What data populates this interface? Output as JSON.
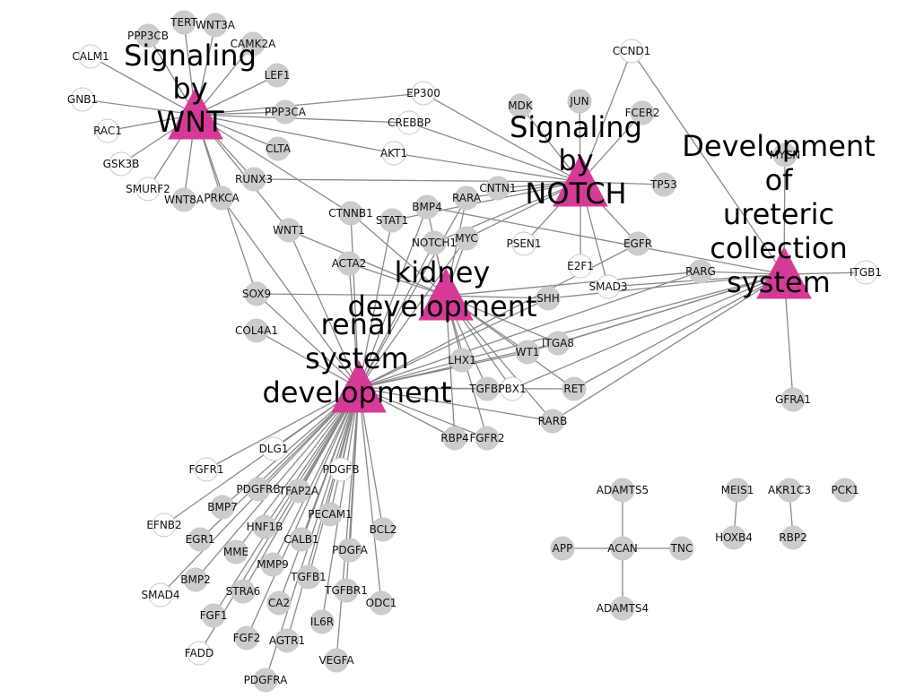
{
  "colors": {
    "hub": "#d63a97",
    "gene_filled": "#cccccc",
    "gene_open": "#ffffff",
    "edge": "#8a8a8a"
  },
  "hubs": [
    {
      "id": "wnt",
      "lines": [
        "Signaling",
        "by",
        "WNT"
      ]
    },
    {
      "id": "notch",
      "lines": [
        "Signaling",
        "by",
        "NOTCH"
      ]
    },
    {
      "id": "ureteric",
      "lines": [
        "Development",
        "of",
        "ureteric",
        "collection",
        "system"
      ]
    },
    {
      "id": "kidney",
      "lines": [
        "kidney",
        "development"
      ]
    },
    {
      "id": "renal",
      "lines": [
        "renal",
        "system",
        "development"
      ]
    }
  ],
  "genes": [
    {
      "id": "TERT",
      "filled": true,
      "hubs": [
        "wnt"
      ]
    },
    {
      "id": "WNT3A",
      "filled": true,
      "hubs": [
        "wnt"
      ]
    },
    {
      "id": "PPP3CB",
      "filled": true,
      "hubs": [
        "wnt"
      ]
    },
    {
      "id": "CAMK2A",
      "filled": true,
      "hubs": [
        "wnt"
      ]
    },
    {
      "id": "CALM1",
      "filled": false,
      "hubs": [
        "wnt"
      ]
    },
    {
      "id": "LEF1",
      "filled": true,
      "hubs": [
        "wnt"
      ]
    },
    {
      "id": "GNB1",
      "filled": false,
      "hubs": [
        "wnt"
      ]
    },
    {
      "id": "PPP3CA",
      "filled": true,
      "hubs": [
        "wnt"
      ]
    },
    {
      "id": "RAC1",
      "filled": false,
      "hubs": [
        "wnt"
      ]
    },
    {
      "id": "GSK3B",
      "filled": false,
      "hubs": [
        "wnt"
      ]
    },
    {
      "id": "SMURF2",
      "filled": false,
      "hubs": [
        "wnt"
      ]
    },
    {
      "id": "WNT8A",
      "filled": true,
      "hubs": [
        "wnt"
      ]
    },
    {
      "id": "PRKCA",
      "filled": true,
      "hubs": [
        "wnt",
        "renal"
      ]
    },
    {
      "id": "CLTA",
      "filled": true,
      "hubs": [
        "wnt"
      ]
    },
    {
      "id": "RUNX3",
      "filled": true,
      "hubs": [
        "wnt",
        "notch"
      ]
    },
    {
      "id": "EP300",
      "filled": false,
      "hubs": [
        "wnt",
        "notch"
      ]
    },
    {
      "id": "CREBBP",
      "filled": false,
      "hubs": [
        "wnt",
        "notch"
      ]
    },
    {
      "id": "AKT1",
      "filled": false,
      "hubs": [
        "wnt",
        "notch"
      ]
    },
    {
      "id": "CTNNB1",
      "filled": true,
      "hubs": [
        "wnt",
        "kidney",
        "renal"
      ]
    },
    {
      "id": "SOX9",
      "filled": true,
      "hubs": [
        "wnt",
        "kidney",
        "renal"
      ]
    },
    {
      "id": "WNT1",
      "filled": true,
      "hubs": [
        "wnt",
        "kidney",
        "renal"
      ]
    },
    {
      "id": "MDK",
      "filled": true,
      "hubs": [
        "notch"
      ]
    },
    {
      "id": "JUN",
      "filled": true,
      "hubs": [
        "notch"
      ]
    },
    {
      "id": "FCER2",
      "filled": true,
      "hubs": [
        "notch"
      ]
    },
    {
      "id": "CCND1",
      "filled": false,
      "hubs": [
        "notch",
        "ureteric"
      ]
    },
    {
      "id": "TP53",
      "filled": true,
      "hubs": [
        "notch"
      ]
    },
    {
      "id": "CNTN1",
      "filled": true,
      "hubs": [
        "notch"
      ]
    },
    {
      "id": "PSEN1",
      "filled": false,
      "hubs": [
        "notch"
      ]
    },
    {
      "id": "E2F1",
      "filled": false,
      "hubs": [
        "notch"
      ]
    },
    {
      "id": "SMAD3",
      "filled": false,
      "hubs": [
        "notch",
        "ureteric"
      ]
    },
    {
      "id": "EGFR",
      "filled": true,
      "hubs": [
        "notch",
        "renal"
      ]
    },
    {
      "id": "RARA",
      "filled": true,
      "hubs": [
        "notch",
        "kidney",
        "renal"
      ]
    },
    {
      "id": "BMP4",
      "filled": true,
      "hubs": [
        "kidney",
        "renal",
        "ureteric"
      ]
    },
    {
      "id": "STAT1",
      "filled": true,
      "hubs": [
        "notch",
        "renal"
      ]
    },
    {
      "id": "NOTCH1",
      "filled": true,
      "hubs": [
        "notch",
        "kidney",
        "renal"
      ]
    },
    {
      "id": "MYC",
      "filled": true,
      "hubs": [
        "notch",
        "kidney",
        "renal"
      ]
    },
    {
      "id": "ACTA2",
      "filled": true,
      "hubs": [
        "kidney",
        "renal"
      ]
    },
    {
      "id": "MYCN",
      "filled": true,
      "hubs": [
        "ureteric"
      ]
    },
    {
      "id": "ITGB1",
      "filled": false,
      "hubs": [
        "ureteric"
      ]
    },
    {
      "id": "RARG",
      "filled": true,
      "hubs": [
        "ureteric",
        "kidney",
        "renal"
      ]
    },
    {
      "id": "GFRA1",
      "filled": true,
      "hubs": [
        "ureteric"
      ]
    },
    {
      "id": "SHH",
      "filled": true,
      "hubs": [
        "kidney",
        "renal",
        "ureteric"
      ]
    },
    {
      "id": "ITGA8",
      "filled": true,
      "hubs": [
        "kidney",
        "renal",
        "ureteric"
      ]
    },
    {
      "id": "WT1",
      "filled": true,
      "hubs": [
        "kidney",
        "renal",
        "ureteric"
      ]
    },
    {
      "id": "LHX1",
      "filled": true,
      "hubs": [
        "kidney",
        "renal",
        "ureteric"
      ]
    },
    {
      "id": "TGFB2",
      "filled": true,
      "hubs": [
        "kidney",
        "renal"
      ]
    },
    {
      "id": "PBX1",
      "filled": false,
      "hubs": [
        "kidney",
        "renal",
        "ureteric"
      ]
    },
    {
      "id": "RET",
      "filled": true,
      "hubs": [
        "kidney",
        "renal",
        "ureteric"
      ]
    },
    {
      "id": "RARB",
      "filled": true,
      "hubs": [
        "kidney",
        "renal",
        "ureteric"
      ]
    },
    {
      "id": "RBP4",
      "filled": true,
      "hubs": [
        "kidney",
        "renal"
      ]
    },
    {
      "id": "FGFR2",
      "filled": true,
      "hubs": [
        "kidney",
        "renal"
      ]
    },
    {
      "id": "COL4A1",
      "filled": true,
      "hubs": [
        "renal"
      ]
    },
    {
      "id": "DLG1",
      "filled": false,
      "hubs": [
        "renal"
      ]
    },
    {
      "id": "FGFR1",
      "filled": false,
      "hubs": [
        "renal"
      ]
    },
    {
      "id": "PDGFB",
      "filled": false,
      "hubs": [
        "renal"
      ]
    },
    {
      "id": "PDGFRB",
      "filled": true,
      "hubs": [
        "renal"
      ]
    },
    {
      "id": "TFAP2A",
      "filled": true,
      "hubs": [
        "renal"
      ]
    },
    {
      "id": "BMP7",
      "filled": true,
      "hubs": [
        "renal"
      ]
    },
    {
      "id": "EFNB2",
      "filled": false,
      "hubs": [
        "renal"
      ]
    },
    {
      "id": "EGR1",
      "filled": true,
      "hubs": [
        "renal"
      ]
    },
    {
      "id": "HNF1B",
      "filled": true,
      "hubs": [
        "renal"
      ]
    },
    {
      "id": "PECAM1",
      "filled": true,
      "hubs": [
        "renal"
      ]
    },
    {
      "id": "BCL2",
      "filled": true,
      "hubs": [
        "renal"
      ]
    },
    {
      "id": "MME",
      "filled": true,
      "hubs": [
        "renal"
      ]
    },
    {
      "id": "CALB1",
      "filled": true,
      "hubs": [
        "renal"
      ]
    },
    {
      "id": "PDGFA",
      "filled": true,
      "hubs": [
        "renal"
      ]
    },
    {
      "id": "BMP2",
      "filled": true,
      "hubs": [
        "renal"
      ]
    },
    {
      "id": "MMP9",
      "filled": true,
      "hubs": [
        "renal"
      ]
    },
    {
      "id": "SMAD4",
      "filled": false,
      "hubs": [
        "renal"
      ]
    },
    {
      "id": "STRA6",
      "filled": true,
      "hubs": [
        "renal"
      ]
    },
    {
      "id": "TGFB1",
      "filled": true,
      "hubs": [
        "renal"
      ]
    },
    {
      "id": "TGFBR1",
      "filled": true,
      "hubs": [
        "renal"
      ]
    },
    {
      "id": "ODC1",
      "filled": true,
      "hubs": [
        "renal"
      ]
    },
    {
      "id": "FGF1",
      "filled": true,
      "hubs": [
        "renal"
      ]
    },
    {
      "id": "CA2",
      "filled": true,
      "hubs": [
        "renal"
      ]
    },
    {
      "id": "IL6R",
      "filled": true,
      "hubs": [
        "renal"
      ]
    },
    {
      "id": "FGF2",
      "filled": true,
      "hubs": [
        "renal"
      ]
    },
    {
      "id": "AGTR1",
      "filled": true,
      "hubs": [
        "renal"
      ]
    },
    {
      "id": "FADD",
      "filled": false,
      "hubs": [
        "renal"
      ]
    },
    {
      "id": "VEGFA",
      "filled": true,
      "hubs": [
        "renal"
      ]
    },
    {
      "id": "PDGFRA",
      "filled": true,
      "hubs": [
        "renal"
      ]
    },
    {
      "id": "ADAMTS5",
      "filled": true,
      "hubs": []
    },
    {
      "id": "APP",
      "filled": true,
      "hubs": []
    },
    {
      "id": "ACAN",
      "filled": true,
      "hubs": []
    },
    {
      "id": "TNC",
      "filled": true,
      "hubs": []
    },
    {
      "id": "ADAMTS4",
      "filled": true,
      "hubs": []
    },
    {
      "id": "MEIS1",
      "filled": true,
      "hubs": []
    },
    {
      "id": "HOXB4",
      "filled": true,
      "hubs": []
    },
    {
      "id": "AKR1C3",
      "filled": true,
      "hubs": []
    },
    {
      "id": "RBP2",
      "filled": true,
      "hubs": []
    },
    {
      "id": "PCK1",
      "filled": true,
      "hubs": []
    }
  ],
  "gene_edges": [
    [
      "ACAN",
      "ADAMTS5"
    ],
    [
      "ACAN",
      "APP"
    ],
    [
      "ACAN",
      "TNC"
    ],
    [
      "ACAN",
      "ADAMTS4"
    ],
    [
      "MEIS1",
      "HOXB4"
    ],
    [
      "AKR1C3",
      "RBP2"
    ]
  ]
}
